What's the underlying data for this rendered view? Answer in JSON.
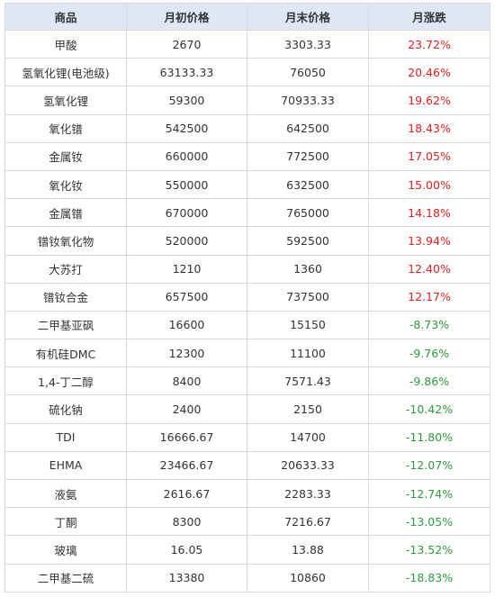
{
  "table": {
    "headers": [
      "商品",
      "月初价格",
      "月末价格",
      "月涨跌"
    ],
    "rows": [
      {
        "name": "甲酸",
        "start": "2670",
        "end": "3303.33",
        "change": "23.72%",
        "trend": "up"
      },
      {
        "name": "氢氧化锂(电池级)",
        "start": "63133.33",
        "end": "76050",
        "change": "20.46%",
        "trend": "up"
      },
      {
        "name": "氢氧化锂",
        "start": "59300",
        "end": "70933.33",
        "change": "19.62%",
        "trend": "up"
      },
      {
        "name": "氧化镨",
        "start": "542500",
        "end": "642500",
        "change": "18.43%",
        "trend": "up"
      },
      {
        "name": "金属钕",
        "start": "660000",
        "end": "772500",
        "change": "17.05%",
        "trend": "up"
      },
      {
        "name": "氧化钕",
        "start": "550000",
        "end": "632500",
        "change": "15.00%",
        "trend": "up"
      },
      {
        "name": "金属镨",
        "start": "670000",
        "end": "765000",
        "change": "14.18%",
        "trend": "up"
      },
      {
        "name": "镨钕氧化物",
        "start": "520000",
        "end": "592500",
        "change": "13.94%",
        "trend": "up"
      },
      {
        "name": "大苏打",
        "start": "1210",
        "end": "1360",
        "change": "12.40%",
        "trend": "up"
      },
      {
        "name": "镨钕合金",
        "start": "657500",
        "end": "737500",
        "change": "12.17%",
        "trend": "up"
      },
      {
        "name": "二甲基亚砜",
        "start": "16600",
        "end": "15150",
        "change": "-8.73%",
        "trend": "down"
      },
      {
        "name": "有机硅DMC",
        "start": "12300",
        "end": "11100",
        "change": "-9.76%",
        "trend": "down"
      },
      {
        "name": "1,4-丁二醇",
        "start": "8400",
        "end": "7571.43",
        "change": "-9.86%",
        "trend": "down"
      },
      {
        "name": "硫化钠",
        "start": "2400",
        "end": "2150",
        "change": "-10.42%",
        "trend": "down"
      },
      {
        "name": "TDI",
        "start": "16666.67",
        "end": "14700",
        "change": "-11.80%",
        "trend": "down"
      },
      {
        "name": "EHMA",
        "start": "23466.67",
        "end": "20633.33",
        "change": "-12.07%",
        "trend": "down"
      },
      {
        "name": "液氨",
        "start": "2616.67",
        "end": "2283.33",
        "change": "-12.74%",
        "trend": "down"
      },
      {
        "name": "丁酮",
        "start": "8300",
        "end": "7216.67",
        "change": "-13.05%",
        "trend": "down"
      },
      {
        "name": "玻璃",
        "start": "16.05",
        "end": "13.88",
        "change": "-13.52%",
        "trend": "down"
      },
      {
        "name": "二甲基二硫",
        "start": "13380",
        "end": "10860",
        "change": "-18.83%",
        "trend": "down"
      }
    ]
  },
  "colors": {
    "up": "#e02020",
    "down": "#2e9b3e",
    "header_bg": "#dde7f5"
  }
}
